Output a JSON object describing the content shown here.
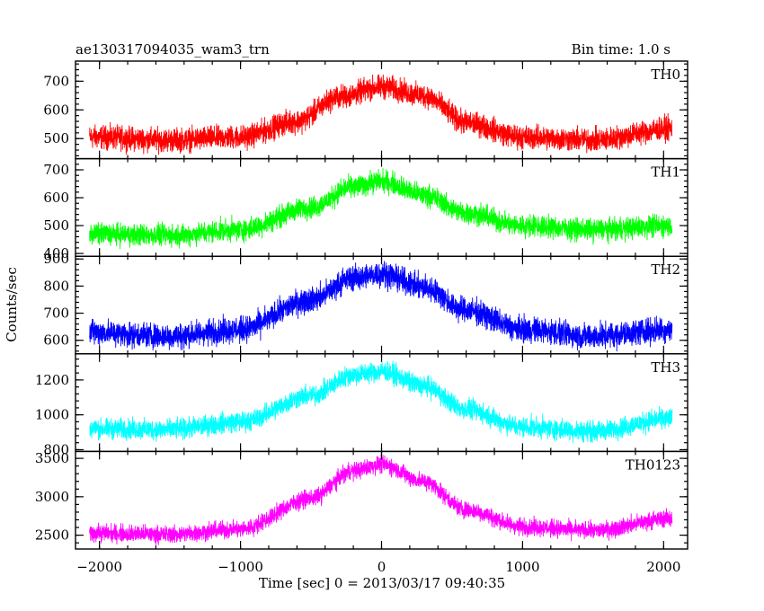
{
  "chart_data": {
    "type": "line",
    "title": "ae130317094035_wam3_trn",
    "title_right": "Bin time: 1.0 s",
    "xlabel": "Time [sec] 0 = 2013/03/17 09:40:35",
    "ylabel": "Counts/sec",
    "xlim": [
      -2170,
      2170
    ],
    "x_ticks": [
      -2000,
      -1000,
      0,
      1000,
      2000
    ],
    "x_tick_labels": [
      "−2000",
      "−1000",
      "0",
      "1000",
      "2000"
    ],
    "x_data_range": [
      -2070,
      2060
    ],
    "panels": [
      {
        "name": "TH0",
        "color": "#ff0000",
        "ylim": [
          430,
          770
        ],
        "y_ticks": [
          500,
          600,
          700
        ],
        "y_tick_labels": [
          "500",
          "600",
          "700"
        ],
        "profile": {
          "x": [
            -2070,
            -1500,
            -1000,
            -600,
            -300,
            0,
            300,
            600,
            1000,
            1500,
            2060
          ],
          "y": [
            505,
            495,
            505,
            560,
            645,
            680,
            650,
            555,
            505,
            495,
            535
          ]
        },
        "noise_amplitude": 42
      },
      {
        "name": "TH1",
        "color": "#00ff00",
        "ylim": [
          390,
          740
        ],
        "y_ticks": [
          400,
          500,
          600,
          700
        ],
        "y_tick_labels": [
          "400",
          "500",
          "600",
          "700"
        ],
        "profile": {
          "x": [
            -2070,
            -1500,
            -1000,
            -500,
            -200,
            0,
            300,
            600,
            1000,
            1500,
            2060
          ],
          "y": [
            470,
            465,
            485,
            565,
            640,
            660,
            610,
            545,
            500,
            485,
            500
          ]
        },
        "noise_amplitude": 40
      },
      {
        "name": "TH2",
        "color": "#0000ff",
        "ylim": [
          550,
          910
        ],
        "y_ticks": [
          600,
          700,
          800,
          900
        ],
        "y_tick_labels": [
          "600",
          "700",
          "800",
          "900"
        ],
        "profile": {
          "x": [
            -2070,
            -1500,
            -1000,
            -500,
            -200,
            0,
            300,
            600,
            1000,
            1500,
            2060
          ],
          "y": [
            630,
            615,
            640,
            750,
            830,
            845,
            795,
            710,
            640,
            615,
            640
          ]
        },
        "noise_amplitude": 48
      },
      {
        "name": "TH3",
        "color": "#00ffff",
        "ylim": [
          790,
          1350
        ],
        "y_ticks": [
          800,
          1000,
          1200
        ],
        "y_tick_labels": [
          "800",
          "1000",
          "1200"
        ],
        "profile": {
          "x": [
            -2070,
            -1500,
            -1000,
            -500,
            -200,
            0,
            300,
            600,
            1000,
            1500,
            2060
          ],
          "y": [
            920,
            915,
            960,
            1110,
            1230,
            1250,
            1165,
            1030,
            930,
            905,
            980
          ]
        },
        "noise_amplitude": 60
      },
      {
        "name": "TH0123",
        "color": "#ff00ff",
        "ylim": [
          2320,
          3590
        ],
        "y_ticks": [
          2500,
          3000,
          3500
        ],
        "y_tick_labels": [
          "2500",
          "3000",
          "3500"
        ],
        "profile": {
          "x": [
            -2070,
            -1500,
            -1000,
            -500,
            -200,
            0,
            300,
            600,
            1000,
            1500,
            2060
          ],
          "y": [
            2530,
            2510,
            2580,
            2980,
            3340,
            3420,
            3200,
            2830,
            2610,
            2560,
            2720
          ]
        },
        "noise_amplitude": 115
      }
    ]
  }
}
